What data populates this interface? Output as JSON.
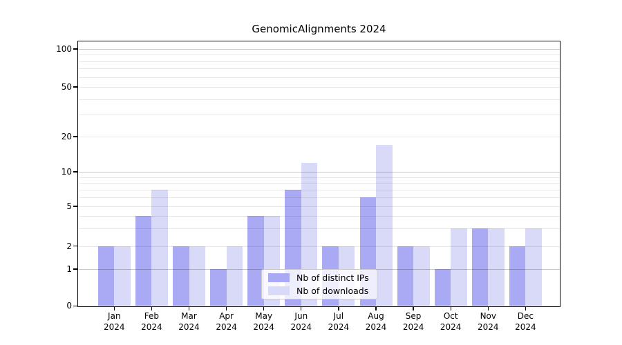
{
  "chart_data": {
    "type": "bar",
    "title": "GenomicAlignments 2024",
    "categories": [
      "Jan 2024",
      "Feb 2024",
      "Mar 2024",
      "Apr 2024",
      "May 2024",
      "Jun 2024",
      "Jul 2024",
      "Aug 2024",
      "Sep 2024",
      "Oct 2024",
      "Nov 2024",
      "Dec 2024"
    ],
    "series": [
      {
        "name": "Nb of distinct IPs",
        "color": "#aaaaf4",
        "values": [
          2,
          4,
          2,
          1,
          4,
          7,
          2,
          6,
          2,
          1,
          3,
          2
        ]
      },
      {
        "name": "Nb of downloads",
        "color": "#d9d9f8",
        "values": [
          2,
          7,
          2,
          2,
          4,
          12,
          2,
          17,
          2,
          3,
          3,
          3
        ]
      }
    ],
    "yscale": "symlog",
    "ylim": [
      0,
      110
    ],
    "y_ticks": [
      0,
      1,
      2,
      5,
      10,
      20,
      50,
      100
    ],
    "major_gridlines": [
      1,
      10,
      100
    ],
    "minor_gridlines": [
      2,
      3,
      4,
      5,
      6,
      7,
      8,
      9,
      20,
      30,
      40,
      50,
      60,
      70,
      80,
      90
    ],
    "grid": "horizontal",
    "legend_position": "inside-bottom-center"
  }
}
